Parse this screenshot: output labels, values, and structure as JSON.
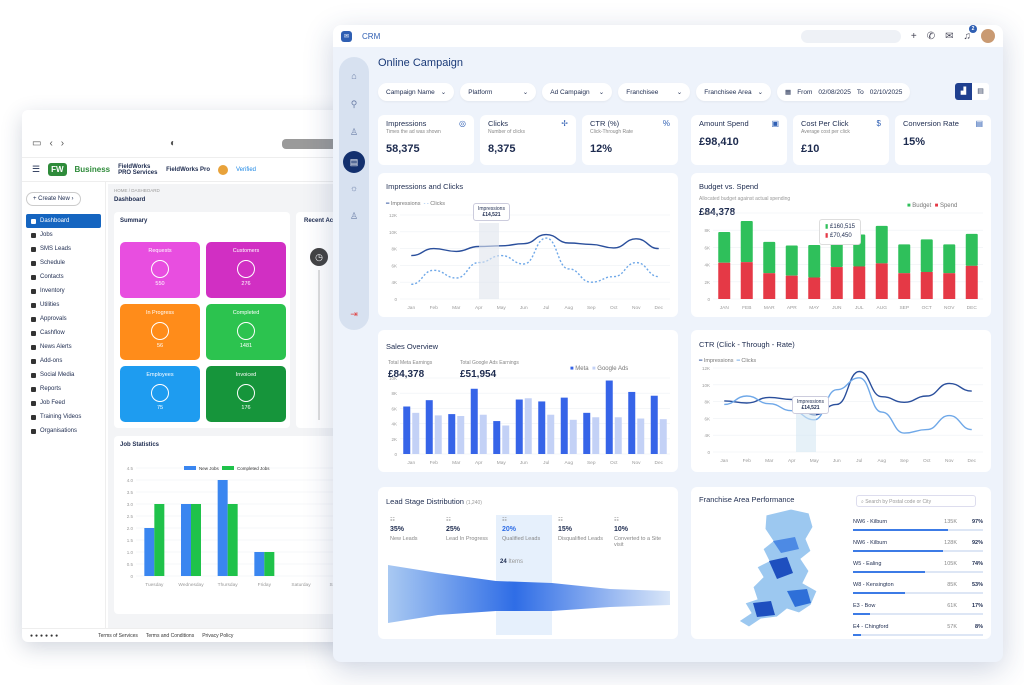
{
  "back": {
    "nav_icons": [
      "sidebar-toggle-icon",
      "back-arrow-icon",
      "forward-arrow-icon"
    ],
    "brand": "Business",
    "brand_tag": "Pro",
    "app_name": "FieldWorks PRO Services",
    "user_name": "FieldWorks Pro",
    "verified": "Verified",
    "create_new": "Create New",
    "breadcrumb": "HOME / DASHBOARD",
    "page_title": "Dashboard",
    "sidebar": [
      {
        "label": "Dashboard",
        "active": true
      },
      {
        "label": "Jobs"
      },
      {
        "label": "SMS Leads"
      },
      {
        "label": "Schedule"
      },
      {
        "label": "Contacts"
      },
      {
        "label": "Inventory"
      },
      {
        "label": "Utilities"
      },
      {
        "label": "Approvals"
      },
      {
        "label": "Cashflow"
      },
      {
        "label": "News Alerts"
      },
      {
        "label": "Add-ons"
      },
      {
        "label": "Social Media"
      },
      {
        "label": "Reports"
      },
      {
        "label": "Job Feed"
      },
      {
        "label": "Training Videos"
      },
      {
        "label": "Organisations"
      }
    ],
    "summary": {
      "title": "Summary",
      "tiles": [
        {
          "label": "Requests",
          "value": "550",
          "color": "#e84ee0"
        },
        {
          "label": "Customers",
          "value": "276",
          "color": "#d12fc3"
        },
        {
          "label": "In Progress",
          "value": "56",
          "color": "#ff8c1a"
        },
        {
          "label": "Completed",
          "value": "1481",
          "color": "#2cc34f"
        },
        {
          "label": "Employees",
          "value": "75",
          "color": "#1e9cf0"
        },
        {
          "label": "Invoiced",
          "value": "176",
          "color": "#16953b"
        }
      ]
    },
    "recent": "Recent Act",
    "job_stats": {
      "title": "Job Statistics",
      "legend": [
        "New Jobs",
        "Completed Jobs"
      ]
    },
    "footer": [
      "Terms of Services",
      "Terms and Conditions",
      "Privacy Policy"
    ]
  },
  "front": {
    "logo": "CRM",
    "notif_count": "2",
    "title": "Online Campaign",
    "filters": [
      "Campaign Name",
      "Platform",
      "Ad Campaign",
      "Franchisee",
      "Franchisee Area"
    ],
    "date": {
      "from_label": "From",
      "from": "02/08/2025",
      "to_label": "To",
      "to": "02/10/2025"
    },
    "kpis": [
      {
        "label": "Impressions",
        "sub": "Times the ad was shown",
        "value": "58,375"
      },
      {
        "label": "Clicks",
        "sub": "Number of clicks",
        "value": "8,375"
      },
      {
        "label": "CTR (%)",
        "sub": "Click-Through Rate",
        "value": "12%"
      },
      {
        "label": "Amount Spend",
        "sub": "",
        "value": "£98,410"
      },
      {
        "label": "Cost Per Click",
        "sub": "Average cost per click",
        "value": "£10"
      },
      {
        "label": "Conversion Rate",
        "sub": "",
        "value": "15%"
      }
    ],
    "imp_clicks": {
      "title": "Impressions and Clicks",
      "legend": [
        "Impressions",
        "Clicks"
      ],
      "tip_label": "Impressions",
      "tip_value": "£14,521"
    },
    "budget": {
      "title": "Budget vs. Spend",
      "sub": "Allocated budget against actual spending",
      "value": "£84,378",
      "legend": [
        "Budget",
        "Spend"
      ],
      "tip1": "£160,515",
      "tip2": "£70,450"
    },
    "sales": {
      "title": "Sales Overview",
      "meta_label": "Total Meta Earnings",
      "meta_value": "£84,378",
      "google_label": "Total Google Ads Earnings",
      "google_value": "£51,954",
      "legend": [
        "Meta",
        "Google Ads"
      ]
    },
    "ctr": {
      "title": "CTR (Click - Through - Rate)",
      "legend": [
        "Impressions",
        "Clicks"
      ],
      "tip_label": "Impressions",
      "tip_value": "£14,521"
    },
    "lead": {
      "title": "Lead Stage Distribution",
      "count": "(1,240)",
      "stages": [
        {
          "pct": "35%",
          "label": "New Leads"
        },
        {
          "pct": "25%",
          "label": "Lead In Progress"
        },
        {
          "pct": "20%",
          "label": "Qualified Leads"
        },
        {
          "pct": "15%",
          "label": "Disqualified Leads"
        },
        {
          "pct": "10%",
          "label": "Converted to a Site visit"
        }
      ],
      "qualified_count": "24",
      "qualified_unit": "Items"
    },
    "franchise": {
      "title": "Franchise Area Performance",
      "search_placeholder": "Search by Postal code or City",
      "rows": [
        {
          "name": "NW6 - Kilburn",
          "count": "135K",
          "pct": "97%",
          "fill": 0.97
        },
        {
          "name": "NW6 - Kilburn",
          "count": "128K",
          "pct": "92%",
          "fill": 0.92
        },
        {
          "name": "W5 - Ealing",
          "count": "105K",
          "pct": "74%",
          "fill": 0.74
        },
        {
          "name": "W8 - Kensington",
          "count": "85K",
          "pct": "53%",
          "fill": 0.53
        },
        {
          "name": "E3 - Bow",
          "count": "61K",
          "pct": "17%",
          "fill": 0.17
        },
        {
          "name": "E4 - Chingford",
          "count": "57K",
          "pct": "8%",
          "fill": 0.08
        }
      ]
    }
  },
  "chart_data": [
    {
      "type": "bar",
      "title": "Job Statistics",
      "categories": [
        "Tuesday",
        "Wednesday",
        "Thursday",
        "Friday",
        "Saturday",
        "Sunday"
      ],
      "series": [
        {
          "name": "New Jobs",
          "values": [
            2,
            3,
            4,
            1,
            0,
            0
          ]
        },
        {
          "name": "Completed Jobs",
          "values": [
            3,
            3,
            3,
            1,
            0,
            0
          ]
        }
      ],
      "yticks": [
        "0",
        "0.5",
        "1.0",
        "1.5",
        "2.0",
        "2.5",
        "3.0",
        "3.5",
        "4.0",
        "4.5"
      ],
      "ylim": [
        0,
        4.5
      ],
      "colors": [
        "#3a86f0",
        "#1fc24a"
      ]
    },
    {
      "type": "line",
      "title": "Impressions and Clicks",
      "categories": [
        "Jan",
        "Feb",
        "Mar",
        "Apr",
        "May",
        "Jun",
        "Jul",
        "Aug",
        "Sep",
        "Oct",
        "Nov",
        "Dec"
      ],
      "series": [
        {
          "name": "Impressions",
          "values": [
            6.2,
            7.2,
            6.8,
            7.5,
            7.6,
            7.9,
            9.2,
            8.0,
            7.8,
            7.3,
            8.6,
            7.2
          ]
        },
        {
          "name": "Clicks",
          "values": [
            2.1,
            4.1,
            3.0,
            5.2,
            6.2,
            5.0,
            8.7,
            4.3,
            2.4,
            3.2,
            5.2,
            3.2
          ]
        }
      ],
      "yticks": [
        "0",
        "4K",
        "6K",
        "8K",
        "10K",
        "12K"
      ],
      "ylim": [
        0,
        12
      ],
      "colors": [
        "#2a4f9c",
        "#6fa8e8"
      ]
    },
    {
      "type": "bar",
      "title": "Budget vs. Spend",
      "categories": [
        "JAN",
        "FEB",
        "MAR",
        "APR",
        "MAY",
        "JUN",
        "JUL",
        "AUG",
        "SEP",
        "OCT",
        "NOV",
        "DEC"
      ],
      "series": [
        {
          "name": "Budget",
          "values": [
            10.9,
            12.7,
            9.3,
            8.7,
            8.8,
            10.8,
            10.5,
            11.9,
            8.9,
            9.7,
            8.9,
            10.6
          ]
        },
        {
          "name": "Spend",
          "values": [
            5.9,
            6.0,
            4.2,
            3.8,
            3.5,
            5.2,
            5.3,
            5.8,
            4.2,
            4.4,
            4.2,
            5.4
          ]
        }
      ],
      "yticks": [
        "0",
        "2K",
        "4K",
        "6K",
        "8K",
        "10K"
      ],
      "ylim": [
        0,
        14
      ],
      "colors": [
        "#2fc05b",
        "#e53946"
      ]
    },
    {
      "type": "bar",
      "title": "Sales Overview",
      "categories": [
        "Jan",
        "Feb",
        "Mar",
        "Apr",
        "May",
        "Jun",
        "Jul",
        "Aug",
        "Sep",
        "Oct",
        "Nov",
        "Dec"
      ],
      "series": [
        {
          "name": "Meta",
          "values": [
            7.5,
            8.5,
            6.3,
            10.3,
            5.2,
            8.6,
            8.3,
            8.9,
            6.5,
            11.6,
            9.8,
            9.2
          ]
        },
        {
          "name": "Google Ads",
          "values": [
            6.5,
            6.1,
            6.0,
            6.2,
            4.5,
            8.8,
            6.2,
            5.4,
            5.8,
            5.8,
            5.6,
            5.5
          ]
        }
      ],
      "yticks": [
        "0",
        "2K",
        "4K",
        "6K",
        "8K",
        "10K"
      ],
      "ylim": [
        0,
        12
      ],
      "colors": [
        "#3664e8",
        "#c3d1f6"
      ]
    },
    {
      "type": "line",
      "title": "CTR (Click - Through - Rate)",
      "categories": [
        "Jan",
        "Feb",
        "Mar",
        "Apr",
        "May",
        "Jun",
        "Jul",
        "Aug",
        "Sep",
        "Oct",
        "Nov",
        "Dec"
      ],
      "series": [
        {
          "name": "Impressions",
          "values": [
            7.3,
            7.0,
            7.8,
            7.5,
            5.3,
            6.8,
            11.5,
            7.9,
            7.1,
            8.0,
            9.8,
            8.7
          ]
        },
        {
          "name": "Clicks",
          "values": [
            6.8,
            8.0,
            6.9,
            5.9,
            4.6,
            8.9,
            10.6,
            5.7,
            2.7,
            3.2,
            5.2,
            3.2
          ]
        }
      ],
      "yticks": [
        "0",
        "4K",
        "6K",
        "8K",
        "10K",
        "12K"
      ],
      "ylim": [
        0,
        12
      ],
      "colors": [
        "#2a4f9c",
        "#6fa8e8"
      ]
    }
  ]
}
